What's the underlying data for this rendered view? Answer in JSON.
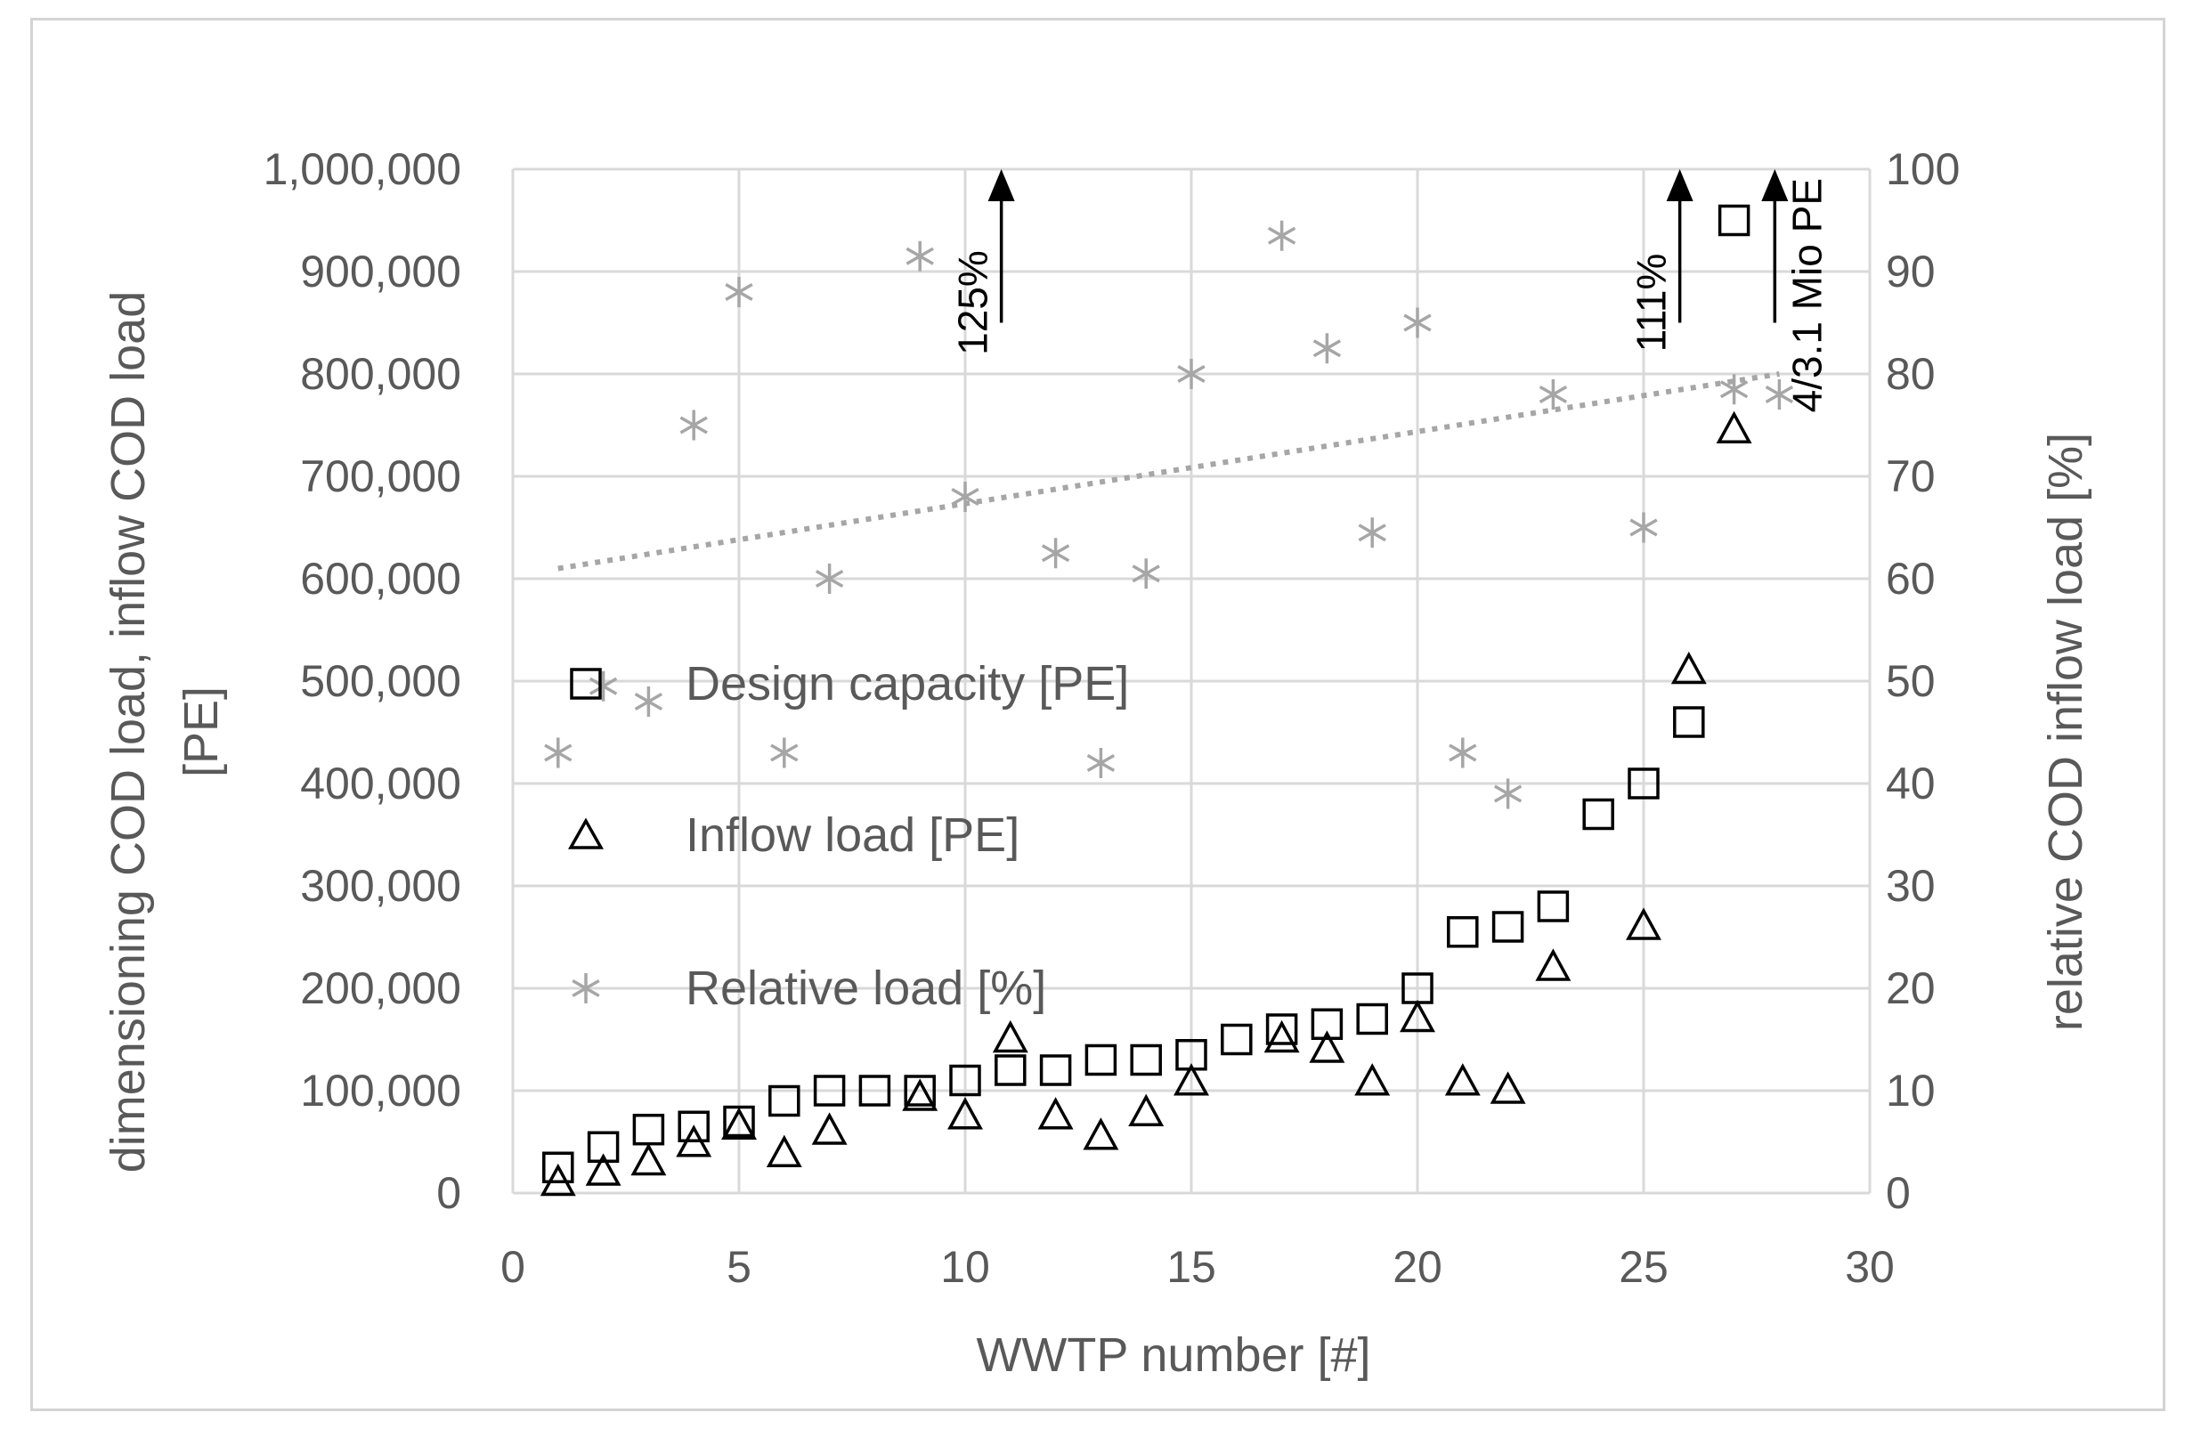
{
  "chart_data": {
    "type": "scatter",
    "title": "",
    "xlabel": "WWTP number [#]",
    "ylabel": "dimensioning COD load, inflow COD load",
    "ylabel_unit": "[PE]",
    "y2label": "relative COD inflow load [%]",
    "xlim": [
      0,
      30
    ],
    "ylim": [
      0,
      1000000
    ],
    "y2lim": [
      0,
      100
    ],
    "grid": true,
    "legend_position": "center-left",
    "x_ticks": [
      "0",
      "5",
      "10",
      "15",
      "20",
      "25",
      "30"
    ],
    "y_ticks": [
      "0",
      "100,000",
      "200,000",
      "300,000",
      "400,000",
      "500,000",
      "600,000",
      "700,000",
      "800,000",
      "900,000",
      "1,000,000"
    ],
    "y2_ticks": [
      "0",
      "10",
      "20",
      "30",
      "40",
      "50",
      "60",
      "70",
      "80",
      "90",
      "100"
    ],
    "series": [
      {
        "name": "Design capacity [PE]",
        "marker": "square",
        "axis": "left",
        "color": "#000000",
        "points": [
          [
            1,
            25000
          ],
          [
            2,
            45000
          ],
          [
            3,
            62000
          ],
          [
            4,
            65000
          ],
          [
            5,
            70000
          ],
          [
            6,
            90000
          ],
          [
            7,
            100000
          ],
          [
            8,
            100000
          ],
          [
            9,
            100000
          ],
          [
            10,
            110000
          ],
          [
            11,
            120000
          ],
          [
            12,
            120000
          ],
          [
            13,
            130000
          ],
          [
            14,
            130000
          ],
          [
            15,
            135000
          ],
          [
            16,
            150000
          ],
          [
            17,
            160000
          ],
          [
            18,
            165000
          ],
          [
            19,
            170000
          ],
          [
            20,
            200000
          ],
          [
            21,
            255000
          ],
          [
            22,
            260000
          ],
          [
            23,
            280000
          ],
          [
            24,
            370000
          ],
          [
            25,
            400000
          ],
          [
            26,
            460000
          ],
          [
            27,
            950000
          ]
        ]
      },
      {
        "name": "Inflow load [PE]",
        "marker": "triangle",
        "axis": "left",
        "color": "#000000",
        "points": [
          [
            1,
            10000
          ],
          [
            2,
            20000
          ],
          [
            3,
            30000
          ],
          [
            4,
            48000
          ],
          [
            5,
            65000
          ],
          [
            6,
            38000
          ],
          [
            7,
            60000
          ],
          [
            9,
            93000
          ],
          [
            10,
            75000
          ],
          [
            11,
            150000
          ],
          [
            12,
            75000
          ],
          [
            13,
            55000
          ],
          [
            14,
            78000
          ],
          [
            15,
            108000
          ],
          [
            17,
            150000
          ],
          [
            18,
            140000
          ],
          [
            19,
            108000
          ],
          [
            20,
            170000
          ],
          [
            21,
            108000
          ],
          [
            22,
            100000
          ],
          [
            23,
            220000
          ],
          [
            25,
            260000
          ],
          [
            26,
            510000
          ],
          [
            27,
            745000
          ]
        ]
      },
      {
        "name": "Relative load [%]",
        "marker": "star",
        "axis": "right",
        "color": "#a6a6a6",
        "points": [
          [
            1,
            43
          ],
          [
            2,
            49.5
          ],
          [
            3,
            48
          ],
          [
            4,
            75
          ],
          [
            5,
            88
          ],
          [
            6,
            43
          ],
          [
            7,
            60
          ],
          [
            9,
            91.5
          ],
          [
            10,
            68
          ],
          [
            12,
            62.5
          ],
          [
            13,
            42
          ],
          [
            14,
            60.5
          ],
          [
            15,
            80
          ],
          [
            17,
            93.5
          ],
          [
            18,
            82.5
          ],
          [
            19,
            64.5
          ],
          [
            20,
            85
          ],
          [
            21,
            43
          ],
          [
            22,
            39
          ],
          [
            23,
            78
          ],
          [
            25,
            65
          ],
          [
            27,
            78.5
          ],
          [
            28,
            78
          ]
        ]
      }
    ],
    "trendline": {
      "series": "Relative load [%]",
      "style": "dotted",
      "color": "#a6a6a6",
      "axis": "right",
      "x": [
        1,
        28
      ],
      "y": [
        61,
        80
      ]
    },
    "annotations": [
      {
        "text": "125%",
        "x": 10.8,
        "arrow_from": 850000,
        "arrow_to": 1000000
      },
      {
        "text": "111%",
        "x": 25.8,
        "arrow_from": 850000,
        "arrow_to": 1000000
      },
      {
        "text": "4/3.1 Mio PE",
        "x": 27.9,
        "arrow_from": 850000,
        "arrow_to": 1000000
      }
    ]
  }
}
